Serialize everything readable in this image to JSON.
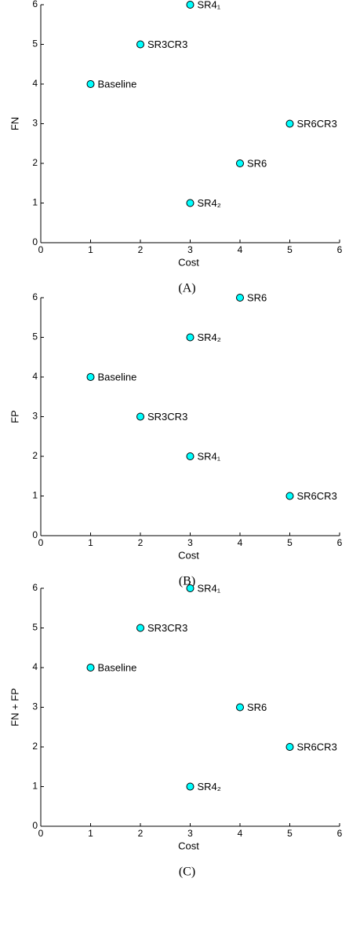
{
  "chart_data": [
    {
      "type": "scatter",
      "xlabel": "Cost",
      "ylabel": "FN",
      "caption": "(A)",
      "labels": [
        "Baseline",
        "SR3CR3",
        "SR4₁",
        "SR4₂",
        "SR6",
        "SR6CR3"
      ],
      "x": [
        1,
        2,
        3,
        3,
        4,
        5
      ],
      "values": [
        4,
        5,
        6,
        1,
        2,
        3
      ],
      "color": "#00ffff",
      "xlim": [
        0,
        6
      ],
      "ylim": [
        0,
        6
      ],
      "xticks": [
        0,
        1,
        2,
        3,
        4,
        5,
        6
      ],
      "yticks": [
        0,
        1,
        2,
        3,
        4,
        5,
        6
      ]
    },
    {
      "type": "scatter",
      "xlabel": "Cost",
      "ylabel": "FP",
      "caption": "(B)",
      "labels": [
        "Baseline",
        "SR3CR3",
        "SR4₂",
        "SR4₁",
        "SR6",
        "SR6CR3"
      ],
      "x": [
        1,
        2,
        3,
        3,
        4,
        5
      ],
      "values": [
        4,
        3,
        5,
        2,
        6,
        1
      ],
      "color": "#00ffff",
      "xlim": [
        0,
        6
      ],
      "ylim": [
        0,
        6
      ],
      "xticks": [
        0,
        1,
        2,
        3,
        4,
        5,
        6
      ],
      "yticks": [
        0,
        1,
        2,
        3,
        4,
        5,
        6
      ]
    },
    {
      "type": "scatter",
      "xlabel": "Cost",
      "ylabel": "FN + FP",
      "caption": "(C)",
      "labels": [
        "Baseline",
        "SR3CR3",
        "SR4₁",
        "SR4₂",
        "SR6",
        "SR6CR3"
      ],
      "x": [
        1,
        2,
        3,
        3,
        4,
        5
      ],
      "values": [
        4,
        5,
        6,
        1,
        3,
        2
      ],
      "color": "#00ffff",
      "xlim": [
        0,
        6
      ],
      "ylim": [
        0,
        6
      ],
      "xticks": [
        0,
        1,
        2,
        3,
        4,
        5,
        6
      ],
      "yticks": [
        0,
        1,
        2,
        3,
        4,
        5,
        6
      ]
    }
  ]
}
